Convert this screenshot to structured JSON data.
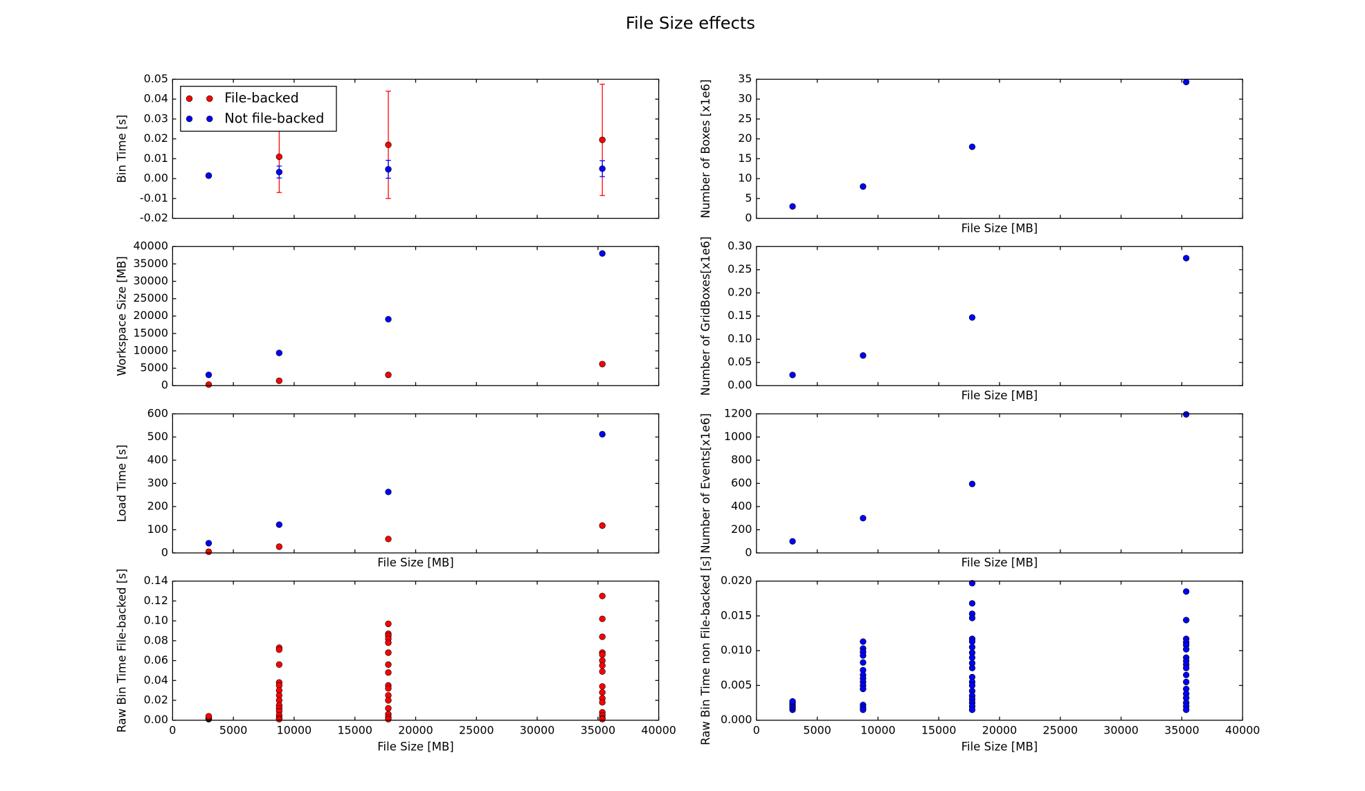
{
  "title": "File Size effects",
  "chart_data": [
    {
      "type": "scatter",
      "ylabel": "Bin Time [s]",
      "xlim": [
        0,
        40000
      ],
      "xticks": [
        0,
        5000,
        10000,
        15000,
        20000,
        25000,
        30000,
        35000,
        40000
      ],
      "xtick_labels": false,
      "ylim": [
        -0.02,
        0.05
      ],
      "yticks": [
        -0.02,
        -0.01,
        {
          "value": 0,
          "label": "0.00"
        },
        0.01,
        0.02,
        0.03,
        0.04,
        0.05
      ],
      "legend": "upper left",
      "series": [
        {
          "name": "File-backed",
          "color": "#ff0000",
          "x": [
            2970,
            8770,
            17750,
            35360
          ],
          "values": [
            0.0015,
            0.011,
            0.017,
            0.0195
          ],
          "errors": [
            0.0005,
            0.018,
            0.027,
            0.028
          ]
        },
        {
          "name": "Not file-backed",
          "color": "#0000ff",
          "x": [
            2970,
            8770,
            17750,
            35360
          ],
          "values": [
            0.0015,
            0.0033,
            0.0047,
            0.005
          ],
          "errors": [
            0.0005,
            0.003,
            0.0045,
            0.004
          ]
        }
      ]
    },
    {
      "type": "scatter",
      "ylabel": "Workspace Size [MB]",
      "xlim": [
        0,
        40000
      ],
      "xticks": [
        0,
        5000,
        10000,
        15000,
        20000,
        25000,
        30000,
        35000,
        40000
      ],
      "xtick_labels": false,
      "ylim": [
        0,
        40000
      ],
      "yticks": [
        0,
        5000,
        10000,
        15000,
        20000,
        25000,
        30000,
        35000,
        40000
      ],
      "series": [
        {
          "color": "#ff0000",
          "x": [
            2970,
            8770,
            17750,
            35360
          ],
          "values": [
            300,
            1400,
            3100,
            6200
          ]
        },
        {
          "color": "#0000ff",
          "x": [
            2970,
            8770,
            17750,
            35360
          ],
          "values": [
            3100,
            9400,
            19100,
            38000
          ]
        }
      ]
    },
    {
      "type": "scatter",
      "ylabel": "Load Time [s]",
      "xlabel": "File Size [MB]",
      "xlim": [
        0,
        40000
      ],
      "xticks": [
        0,
        5000,
        10000,
        15000,
        20000,
        25000,
        30000,
        35000,
        40000
      ],
      "xtick_labels": false,
      "ylim": [
        0,
        600
      ],
      "yticks": [
        0,
        100,
        200,
        300,
        400,
        500,
        600
      ],
      "series": [
        {
          "color": "#ff0000",
          "x": [
            2970,
            8770,
            17750,
            35360
          ],
          "values": [
            5,
            27,
            60,
            118
          ]
        },
        {
          "color": "#0000ff",
          "x": [
            2970,
            8770,
            17750,
            35360
          ],
          "values": [
            42,
            122,
            263,
            512
          ]
        }
      ]
    },
    {
      "type": "scatter",
      "ylabel": "Raw Bin Time File-backed [s]",
      "xlabel": "File Size [MB]",
      "xlim": [
        0,
        40000
      ],
      "xticks": [
        0,
        5000,
        10000,
        15000,
        20000,
        25000,
        30000,
        35000,
        40000
      ],
      "xtick_labels": true,
      "ylim": [
        0,
        0.14
      ],
      "yticks": [
        {
          "value": 0,
          "label": "0.00"
        },
        0.02,
        0.04,
        0.06,
        0.08,
        {
          "value": 0.1,
          "label": "0.10"
        },
        0.12,
        0.14
      ],
      "series": [
        {
          "color": "#ff0000",
          "x": [
            2970,
            2970,
            2970,
            2970,
            2970,
            2970,
            8770,
            8770,
            8770,
            8770,
            8770,
            8770,
            8770,
            8770,
            8770,
            8770,
            8770,
            8770,
            8770,
            8770,
            17750,
            17750,
            17750,
            17750,
            17750,
            17750,
            17750,
            17750,
            17750,
            17750,
            17750,
            17750,
            17750,
            17750,
            17750,
            17750,
            35360,
            35360,
            35360,
            35360,
            35360,
            35360,
            35360,
            35360,
            35360,
            35360,
            35360,
            35360,
            35360,
            35360,
            35360,
            35360
          ],
          "values": [
            0.001,
            0.0015,
            0.002,
            0.0025,
            0.003,
            0.004,
            0.073,
            0.071,
            0.056,
            0.038,
            0.035,
            0.03,
            0.025,
            0.02,
            0.015,
            0.012,
            0.009,
            0.005,
            0.002,
            0.001,
            0.097,
            0.087,
            0.085,
            0.082,
            0.078,
            0.068,
            0.056,
            0.048,
            0.035,
            0.032,
            0.025,
            0.02,
            0.012,
            0.006,
            0.003,
            0.001,
            0.125,
            0.102,
            0.084,
            0.068,
            0.066,
            0.06,
            0.055,
            0.049,
            0.034,
            0.028,
            0.022,
            0.018,
            0.008,
            0.005,
            0.002,
            0.001
          ]
        }
      ]
    },
    {
      "type": "scatter",
      "ylabel": "Number of Boxes [x1e6]",
      "xlabel": "File Size [MB]",
      "xlim": [
        0,
        40000
      ],
      "xticks": [
        0,
        5000,
        10000,
        15000,
        20000,
        25000,
        30000,
        35000,
        40000
      ],
      "xtick_labels": false,
      "ylim": [
        0,
        35
      ],
      "yticks": [
        0,
        5,
        10,
        15,
        20,
        25,
        30,
        35
      ],
      "series": [
        {
          "color": "#0000ff",
          "x": [
            2970,
            8770,
            17750,
            35360
          ],
          "values": [
            3,
            8,
            18,
            34.3
          ]
        }
      ]
    },
    {
      "type": "scatter",
      "ylabel": "Number of GridBoxes[x1e6]",
      "xlabel": "File Size [MB]",
      "xlim": [
        0,
        40000
      ],
      "xticks": [
        0,
        5000,
        10000,
        15000,
        20000,
        25000,
        30000,
        35000,
        40000
      ],
      "xtick_labels": false,
      "ylim": [
        0,
        0.3
      ],
      "yticks": [
        {
          "value": 0,
          "label": "0.00"
        },
        0.05,
        {
          "value": 0.1,
          "label": "0.10"
        },
        0.15,
        {
          "value": 0.2,
          "label": "0.20"
        },
        0.25,
        {
          "value": 0.3,
          "label": "0.30"
        }
      ],
      "series": [
        {
          "color": "#0000ff",
          "x": [
            2970,
            8770,
            17750,
            35360
          ],
          "values": [
            0.023,
            0.065,
            0.147,
            0.275
          ]
        }
      ]
    },
    {
      "type": "scatter",
      "ylabel": "Number of Events[x1e6]",
      "xlabel": "File Size [MB]",
      "xlim": [
        0,
        40000
      ],
      "xticks": [
        0,
        5000,
        10000,
        15000,
        20000,
        25000,
        30000,
        35000,
        40000
      ],
      "xtick_labels": false,
      "ylim": [
        0,
        1200
      ],
      "yticks": [
        0,
        200,
        400,
        600,
        800,
        1000,
        1200
      ],
      "series": [
        {
          "color": "#0000ff",
          "x": [
            2970,
            8770,
            17750,
            35360
          ],
          "values": [
            100,
            300,
            595,
            1195
          ]
        }
      ]
    },
    {
      "type": "scatter",
      "ylabel": "Raw Bin Time non File-backed [s]",
      "xlabel": "File Size [MB]",
      "xlim": [
        0,
        40000
      ],
      "xticks": [
        0,
        5000,
        10000,
        15000,
        20000,
        25000,
        30000,
        35000,
        40000
      ],
      "xtick_labels": true,
      "ylim": [
        0,
        0.02
      ],
      "yticks": [
        {
          "value": 0,
          "label": "0.000"
        },
        0.005,
        {
          "value": 0.01,
          "label": "0.010"
        },
        0.015,
        {
          "value": 0.02,
          "label": "0.020"
        }
      ],
      "series": [
        {
          "color": "#0000ff",
          "x": [
            2970,
            2970,
            2970,
            2970,
            2970,
            2970,
            8770,
            8770,
            8770,
            8770,
            8770,
            8770,
            8770,
            8770,
            8770,
            8770,
            8770,
            8770,
            8770,
            8770,
            17750,
            17750,
            17750,
            17750,
            17750,
            17750,
            17750,
            17750,
            17750,
            17750,
            17750,
            17750,
            17750,
            17750,
            17750,
            17750,
            17750,
            17750,
            17750,
            17750,
            35360,
            35360,
            35360,
            35360,
            35360,
            35360,
            35360,
            35360,
            35360,
            35360,
            35360,
            35360,
            35360,
            35360,
            35360,
            35360,
            35360,
            35360
          ],
          "values": [
            0.0015,
            0.0018,
            0.002,
            0.0022,
            0.0025,
            0.0027,
            0.0113,
            0.0103,
            0.0098,
            0.0093,
            0.0083,
            0.0072,
            0.0065,
            0.006,
            0.0055,
            0.005,
            0.0045,
            0.0022,
            0.0018,
            0.0015,
            0.0197,
            0.0168,
            0.0153,
            0.0147,
            0.0117,
            0.0113,
            0.0105,
            0.0097,
            0.009,
            0.0082,
            0.0075,
            0.0062,
            0.0055,
            0.005,
            0.0042,
            0.0035,
            0.003,
            0.0025,
            0.002,
            0.0015,
            0.0185,
            0.0144,
            0.0117,
            0.0112,
            0.0108,
            0.0102,
            0.009,
            0.0085,
            0.008,
            0.0075,
            0.0065,
            0.0055,
            0.0045,
            0.0038,
            0.0032,
            0.0025,
            0.002,
            0.0015
          ]
        }
      ]
    }
  ]
}
